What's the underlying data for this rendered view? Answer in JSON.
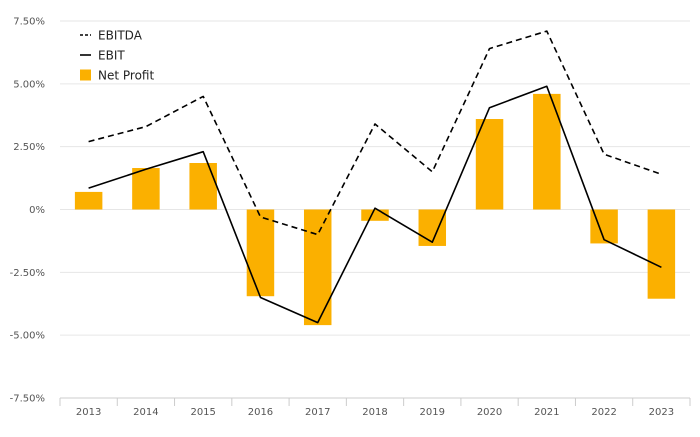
{
  "chart_data": {
    "type": "bar",
    "title": "",
    "xlabel": "",
    "ylabel": "",
    "categories": [
      "2013",
      "2014",
      "2015",
      "2016",
      "2017",
      "2018",
      "2019",
      "2020",
      "2021",
      "2022",
      "2023"
    ],
    "ylim": [
      -7.5,
      7.5
    ],
    "yticks": [
      -7.5,
      -5.0,
      -2.5,
      0,
      2.5,
      5.0,
      7.5
    ],
    "ytick_labels": [
      "-7.50%",
      "-5.00%",
      "-2.50%",
      "0%",
      "2.50%",
      "5.00%",
      "7.50%"
    ],
    "grid": true,
    "legend_position": "top-left",
    "series": [
      {
        "name": "EBITDA",
        "kind": "line",
        "style": "dashed",
        "color": "#000000",
        "values": [
          2.7,
          3.3,
          4.5,
          -0.3,
          -1.0,
          3.4,
          1.5,
          6.4,
          7.1,
          2.2,
          1.4
        ]
      },
      {
        "name": "EBIT",
        "kind": "line",
        "style": "solid",
        "color": "#000000",
        "values": [
          0.85,
          1.6,
          2.3,
          -3.5,
          -4.5,
          0.05,
          -1.3,
          4.05,
          4.9,
          -1.2,
          -2.3
        ]
      },
      {
        "name": "Net Profit",
        "kind": "bar",
        "color": "#FBB000",
        "values": [
          0.7,
          1.65,
          1.85,
          -3.45,
          -4.6,
          -0.45,
          -1.45,
          3.6,
          4.6,
          -1.35,
          -3.55
        ]
      }
    ]
  }
}
